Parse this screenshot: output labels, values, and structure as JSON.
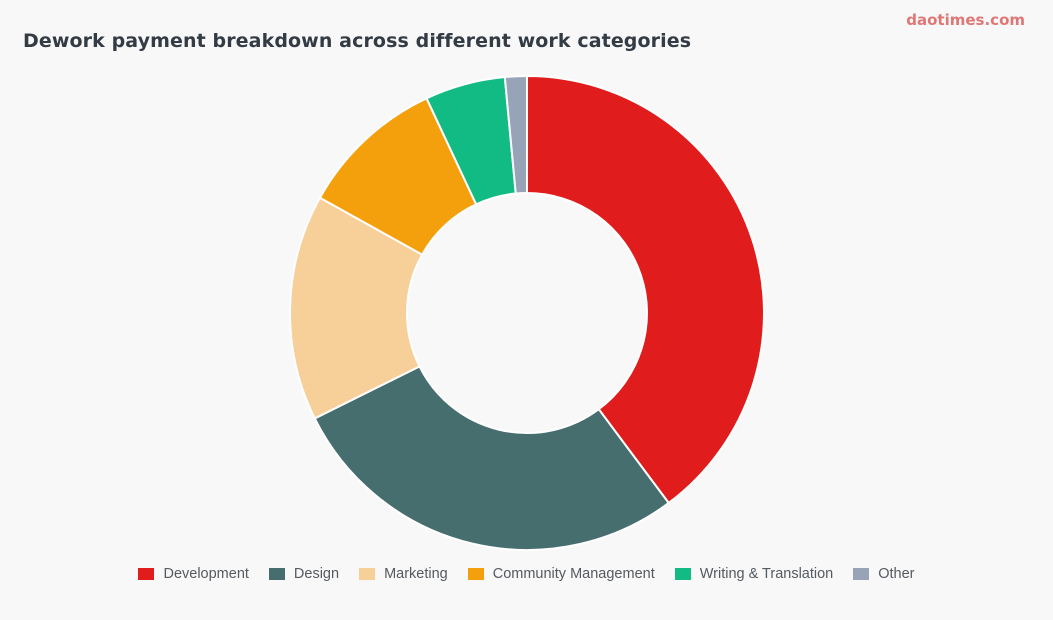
{
  "header": {
    "title": "Dework payment breakdown across different work categories",
    "brand": "daotimes.com"
  },
  "chart_data": {
    "type": "pie",
    "title": "Dework payment breakdown across different work categories",
    "categories": [
      "Development",
      "Design",
      "Marketing",
      "Community Management",
      "Writing & Translation",
      "Other"
    ],
    "values": [
      40,
      28,
      15.5,
      10,
      5.5,
      1.5
    ],
    "colors": [
      "#e01c1c",
      "#466e6e",
      "#f7cf99",
      "#f4a00c",
      "#13bb84",
      "#97a4b8"
    ],
    "legend_position": "bottom",
    "donut": true
  }
}
